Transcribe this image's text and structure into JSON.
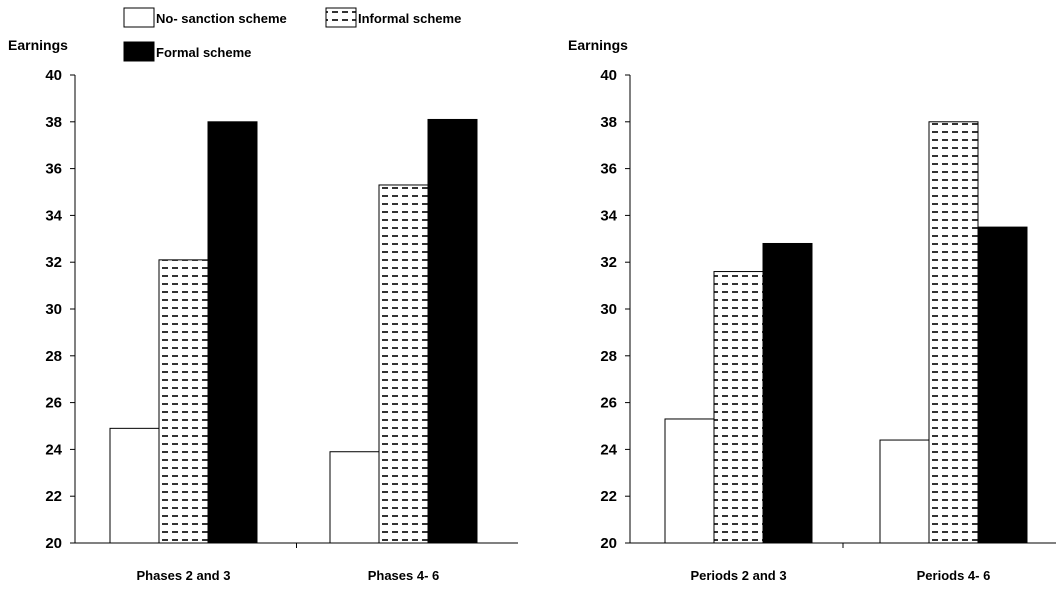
{
  "legend": [
    {
      "name": "No- sanction scheme",
      "pattern": "none",
      "fill": "#ffffff"
    },
    {
      "name": "Informal scheme",
      "pattern": "dashes",
      "fill": "#ffffff"
    },
    {
      "name": "Formal scheme",
      "pattern": "solid",
      "fill": "#000000"
    }
  ],
  "chart_data": [
    {
      "type": "bar",
      "ylabel": "Earnings",
      "ylim": [
        20,
        40
      ],
      "yticks": [
        20,
        22,
        24,
        26,
        28,
        30,
        32,
        34,
        36,
        38,
        40
      ],
      "categories": [
        "Phases 2 and 3",
        "Phases 4- 6"
      ],
      "series": [
        {
          "name": "No- sanction scheme",
          "values": [
            24.9,
            23.9
          ]
        },
        {
          "name": "Informal scheme",
          "values": [
            32.1,
            35.3
          ]
        },
        {
          "name": "Formal scheme",
          "values": [
            38.0,
            38.1
          ]
        }
      ]
    },
    {
      "type": "bar",
      "ylabel": "Earnings",
      "ylim": [
        20,
        40
      ],
      "yticks": [
        20,
        22,
        24,
        26,
        28,
        30,
        32,
        34,
        36,
        38,
        40
      ],
      "categories": [
        "Periods 2 and 3",
        "Periods 4- 6"
      ],
      "series": [
        {
          "name": "No- sanction scheme",
          "values": [
            25.3,
            24.4
          ]
        },
        {
          "name": "Informal scheme",
          "values": [
            31.6,
            38.0
          ]
        },
        {
          "name": "Formal scheme",
          "values": [
            32.8,
            33.5
          ]
        }
      ]
    }
  ]
}
